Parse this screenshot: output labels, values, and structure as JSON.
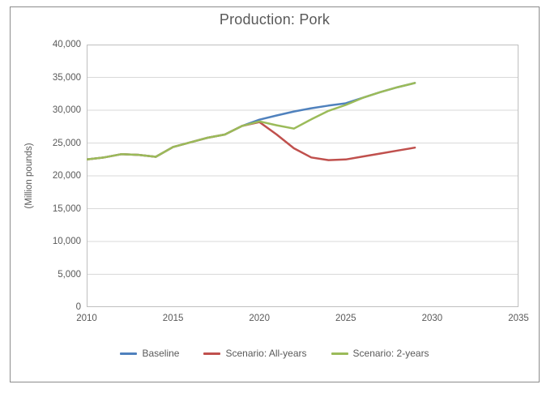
{
  "chart": {
    "title": "Production: Pork",
    "y_axis": {
      "label": "(Million pounds)",
      "tick_labels": [
        "40,000",
        "35,000",
        "30,000",
        "25,000",
        "20,000",
        "15,000",
        "10,000",
        "5,000",
        "0"
      ]
    },
    "x_axis": {
      "tick_labels": [
        "2010",
        "2015",
        "2020",
        "2025",
        "2030",
        "2035"
      ]
    },
    "legend": [
      {
        "label": "Baseline",
        "color": "#4F81BD"
      },
      {
        "label": "Scenario: All-years",
        "color": "#C0504D"
      },
      {
        "label": "Scenario: 2-years",
        "color": "#9BBB59"
      }
    ],
    "colors": {
      "text": "#595959",
      "gridline": "#D9D9D9",
      "plot_border": "#BFBFBF",
      "frame_border": "#8C8C8C"
    }
  },
  "chart_data": {
    "type": "line",
    "title": "Production: Pork",
    "xlabel": "",
    "ylabel": "(Million pounds)",
    "xlim": [
      2010,
      2035
    ],
    "ylim": [
      0,
      40000
    ],
    "y_step": 5000,
    "grid": true,
    "legend_position": "bottom",
    "x": [
      2010,
      2011,
      2012,
      2013,
      2014,
      2015,
      2016,
      2017,
      2018,
      2019,
      2020,
      2021,
      2022,
      2023,
      2024,
      2025,
      2026,
      2027,
      2028,
      2029
    ],
    "series": [
      {
        "name": "Baseline",
        "color": "#4F81BD",
        "values": [
          22500,
          22800,
          23300,
          23200,
          22900,
          24400,
          25100,
          25800,
          26300,
          27600,
          28550,
          29200,
          29800,
          30300,
          30700,
          31050,
          31900,
          32750,
          33500,
          34150
        ]
      },
      {
        "name": "Scenario: All-years",
        "color": "#C0504D",
        "values": [
          22500,
          22800,
          23300,
          23200,
          22900,
          24400,
          25100,
          25800,
          26300,
          27600,
          28200,
          26300,
          24200,
          22800,
          22400,
          22500,
          22950,
          23400,
          23850,
          24300
        ]
      },
      {
        "name": "Scenario: 2-years",
        "color": "#9BBB59",
        "values": [
          22500,
          22800,
          23300,
          23200,
          22900,
          24400,
          25100,
          25800,
          26300,
          27600,
          28300,
          27700,
          27200,
          28600,
          29900,
          30800,
          31900,
          32750,
          33500,
          34150
        ]
      }
    ]
  }
}
